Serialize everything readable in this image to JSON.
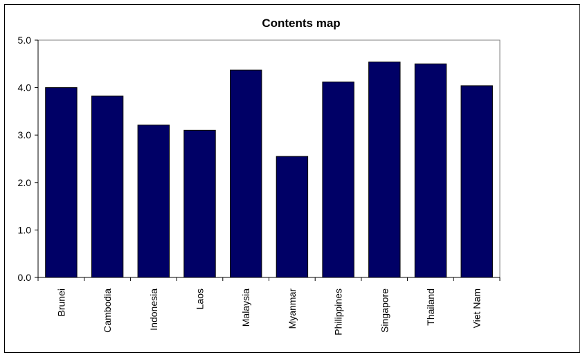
{
  "chart_data": {
    "type": "bar",
    "title": "Contents map",
    "xlabel": "",
    "ylabel": "",
    "categories": [
      "Brunei",
      "Cambodia",
      "Indonesia",
      "Laos",
      "Malaysia",
      "Myanmar",
      "Philippines",
      "Singapore",
      "Thailand",
      "Viet Nam"
    ],
    "values": [
      4.0,
      3.82,
      3.21,
      3.1,
      4.37,
      2.55,
      4.12,
      4.54,
      4.5,
      4.04
    ],
    "ylim": [
      0,
      5
    ],
    "yticks": [
      "0.0",
      "1.0",
      "2.0",
      "3.0",
      "4.0",
      "5.0"
    ],
    "grid": false,
    "legend": "none",
    "colors": {
      "bar_fill": "#000066",
      "bar_stroke": "#000000",
      "axis": "#000000",
      "plot_border": "#808080"
    }
  }
}
